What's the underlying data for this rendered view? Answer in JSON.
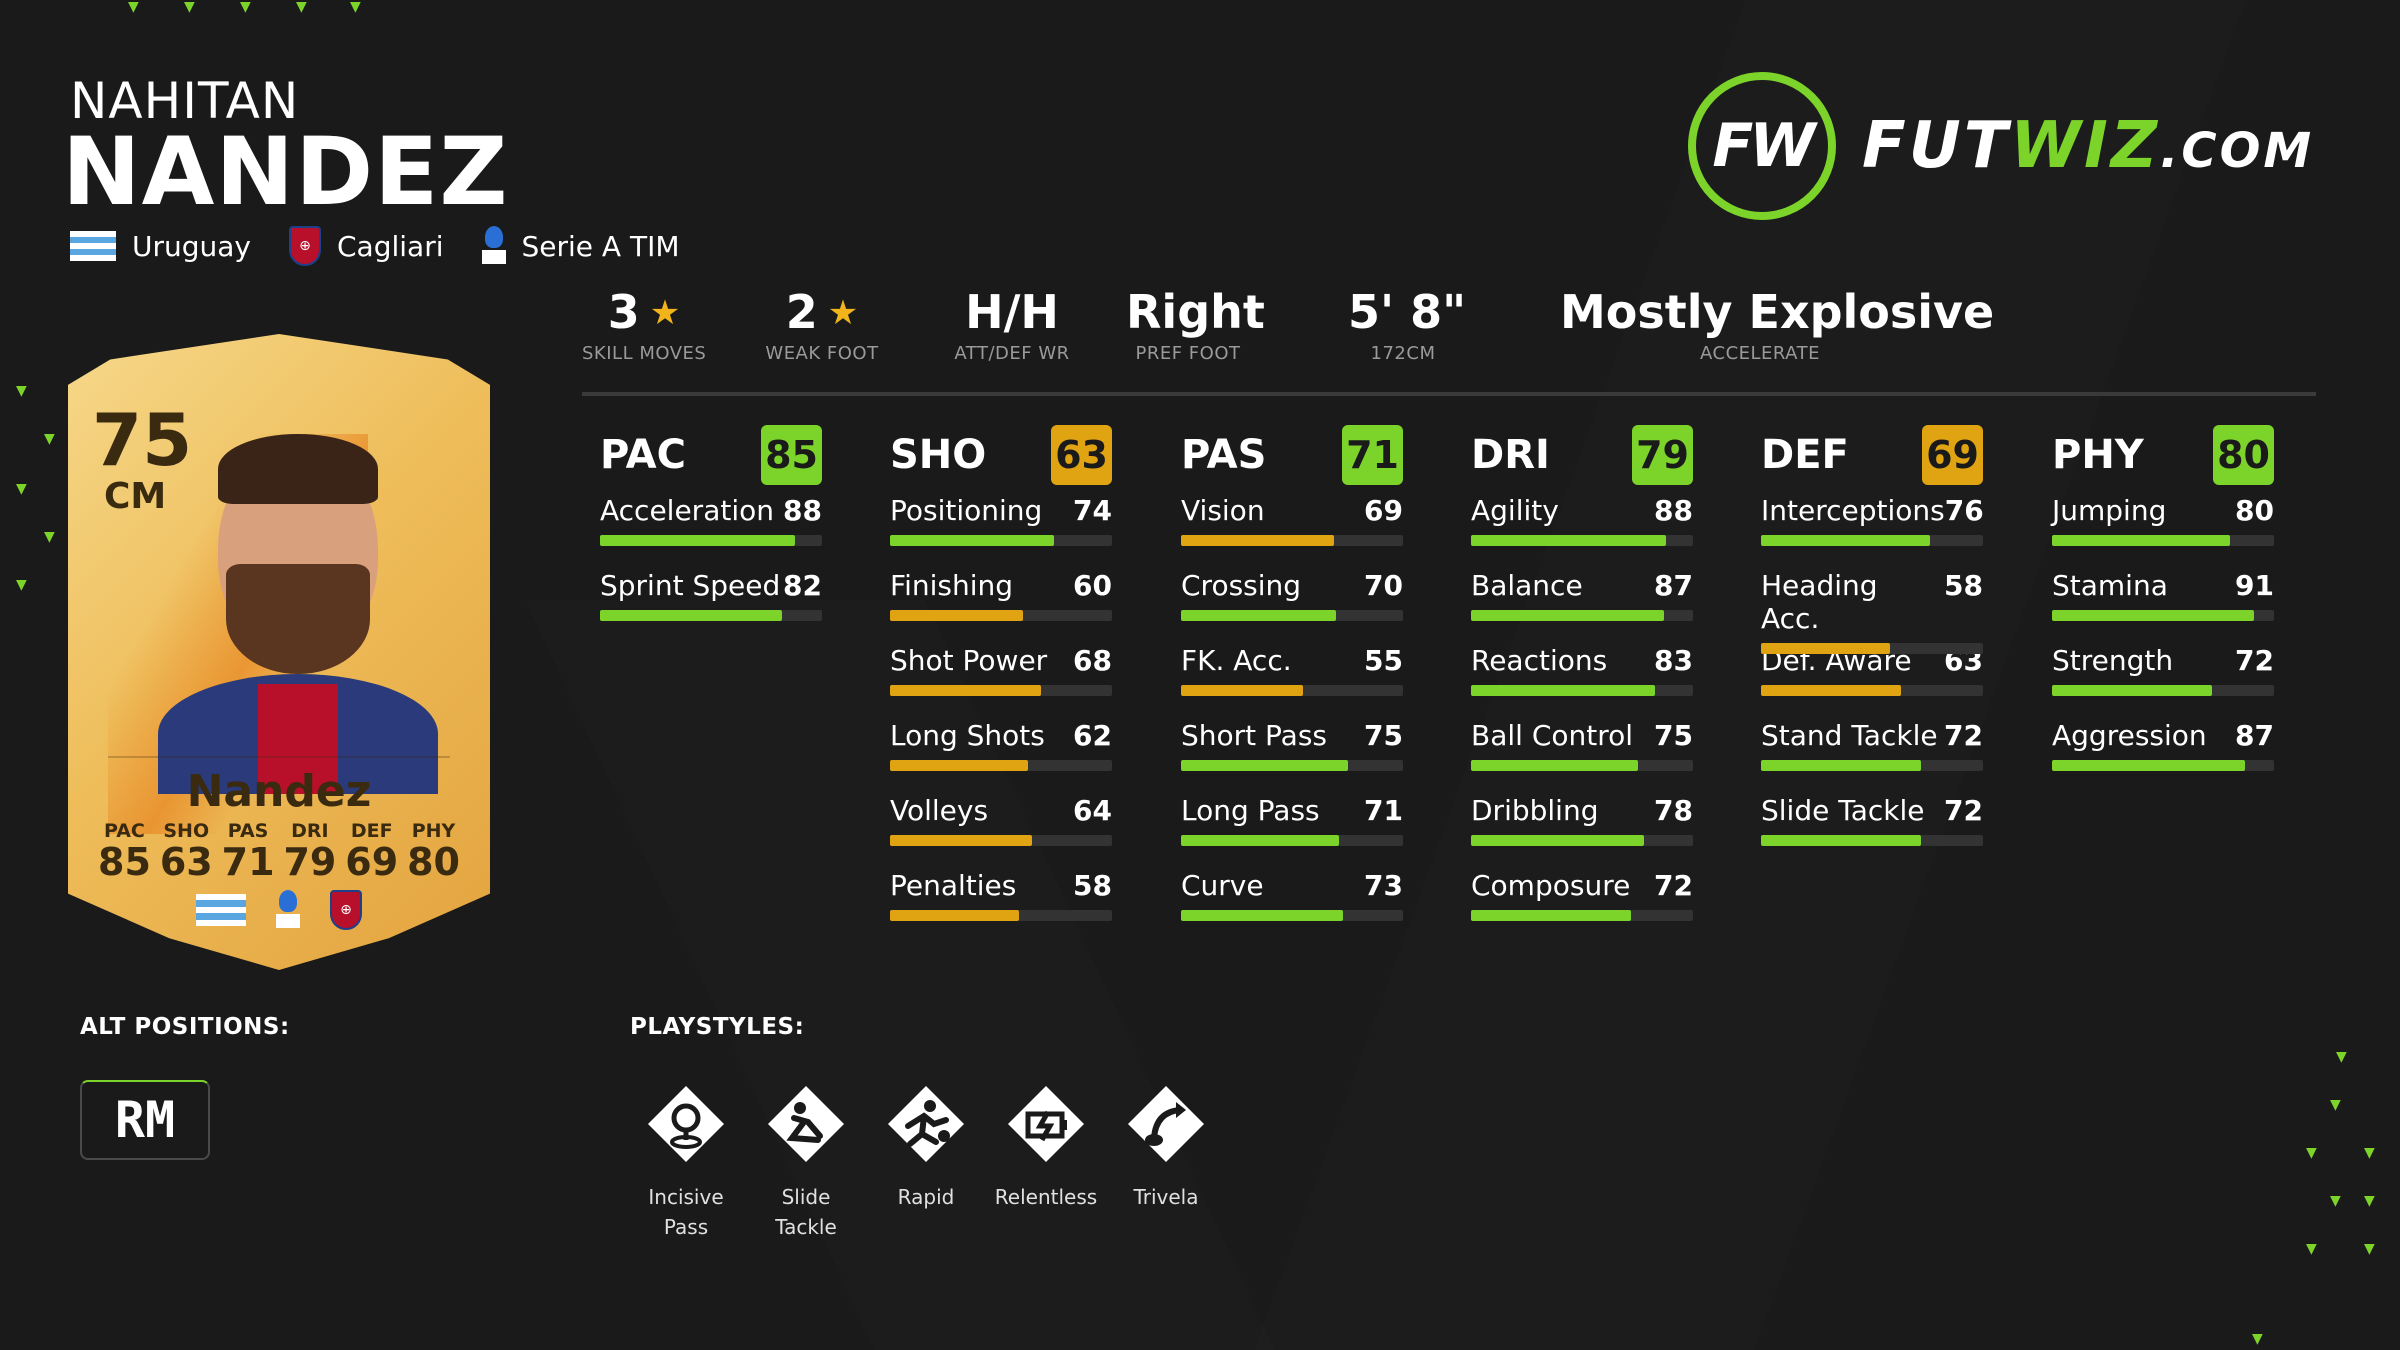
{
  "player": {
    "first_name": "NAHITAN",
    "last_name": "NANDEZ",
    "nation": "Uruguay",
    "club": "Cagliari",
    "league": "Serie A TIM"
  },
  "logo": {
    "mark": "FW",
    "text_1": "FUT",
    "text_2": "WIZ",
    "text_3": ".COM"
  },
  "card": {
    "rating": "75",
    "position": "CM",
    "name": "Nandez",
    "stats": [
      {
        "k": "PAC",
        "v": "85"
      },
      {
        "k": "SHO",
        "v": "63"
      },
      {
        "k": "PAS",
        "v": "71"
      },
      {
        "k": "DRI",
        "v": "79"
      },
      {
        "k": "DEF",
        "v": "69"
      },
      {
        "k": "PHY",
        "v": "80"
      }
    ]
  },
  "info": [
    {
      "val": "3",
      "star": true,
      "sub": "SKILL MOVES"
    },
    {
      "val": "2",
      "star": true,
      "sub": "WEAK FOOT"
    },
    {
      "val": "H/H",
      "star": false,
      "sub": "ATT/DEF WR"
    },
    {
      "val": "Right",
      "star": false,
      "sub": "PREF FOOT"
    },
    {
      "val": "5' 8\"",
      "star": false,
      "sub": "172CM"
    },
    {
      "val": "Mostly Explosive",
      "star": false,
      "sub": "ACCELERATE"
    }
  ],
  "star_glyph": "★",
  "colors": {
    "green": "#7cd32a",
    "orange": "#e0a412",
    "accent": "#7cd32a"
  },
  "categories": [
    {
      "name": "PAC",
      "value": 85,
      "stats": [
        {
          "label": "Acceleration",
          "value": 88
        },
        {
          "label": "Sprint Speed",
          "value": 82
        }
      ]
    },
    {
      "name": "SHO",
      "value": 63,
      "stats": [
        {
          "label": "Positioning",
          "value": 74
        },
        {
          "label": "Finishing",
          "value": 60
        },
        {
          "label": "Shot Power",
          "value": 68
        },
        {
          "label": "Long Shots",
          "value": 62
        },
        {
          "label": "Volleys",
          "value": 64
        },
        {
          "label": "Penalties",
          "value": 58
        }
      ]
    },
    {
      "name": "PAS",
      "value": 71,
      "stats": [
        {
          "label": "Vision",
          "value": 69
        },
        {
          "label": "Crossing",
          "value": 70
        },
        {
          "label": "FK. Acc.",
          "value": 55
        },
        {
          "label": "Short Pass",
          "value": 75
        },
        {
          "label": "Long Pass",
          "value": 71
        },
        {
          "label": "Curve",
          "value": 73
        }
      ]
    },
    {
      "name": "DRI",
      "value": 79,
      "stats": [
        {
          "label": "Agility",
          "value": 88
        },
        {
          "label": "Balance",
          "value": 87
        },
        {
          "label": "Reactions",
          "value": 83
        },
        {
          "label": "Ball Control",
          "value": 75
        },
        {
          "label": "Dribbling",
          "value": 78
        },
        {
          "label": "Composure",
          "value": 72
        }
      ]
    },
    {
      "name": "DEF",
      "value": 69,
      "stats": [
        {
          "label": "Interceptions",
          "value": 76
        },
        {
          "label": "Heading Acc.",
          "value": 58
        },
        {
          "label": "Def. Aware",
          "value": 63
        },
        {
          "label": "Stand Tackle",
          "value": 72
        },
        {
          "label": "Slide Tackle",
          "value": 72
        }
      ]
    },
    {
      "name": "PHY",
      "value": 80,
      "stats": [
        {
          "label": "Jumping",
          "value": 80
        },
        {
          "label": "Stamina",
          "value": 91
        },
        {
          "label": "Strength",
          "value": 72
        },
        {
          "label": "Aggression",
          "value": 87
        }
      ]
    }
  ],
  "alt_positions": {
    "label": "ALT POSITIONS:",
    "items": [
      "RM"
    ]
  },
  "playstyles": {
    "label": "PLAYSTYLES:",
    "items": [
      {
        "name": "Incisive\nPass",
        "icon": "incisive-pass-icon"
      },
      {
        "name": "Slide\nTackle",
        "icon": "slide-tackle-icon"
      },
      {
        "name": "Rapid",
        "icon": "rapid-icon"
      },
      {
        "name": "Relentless",
        "icon": "relentless-icon"
      },
      {
        "name": "Trivela",
        "icon": "trivela-icon"
      }
    ]
  }
}
